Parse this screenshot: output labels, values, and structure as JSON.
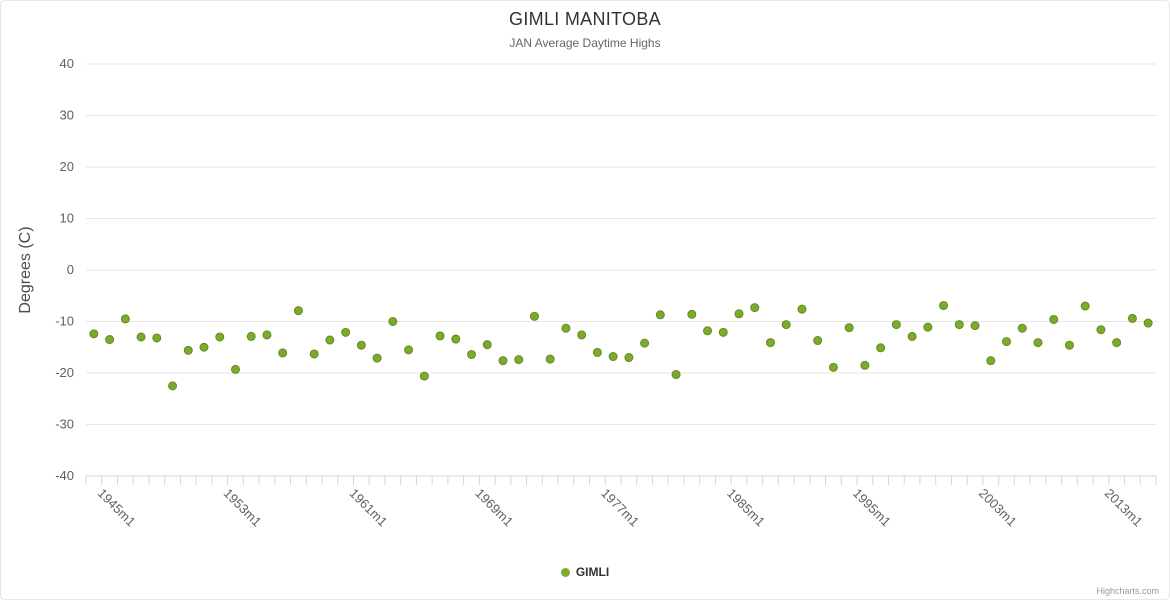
{
  "chart": {
    "title": "GIMLI MANITOBA",
    "subtitle": "JAN Average Daytime Highs",
    "y_axis_title": "Degrees (C)",
    "legend_label": "GIMLI",
    "credits": "Highcharts.com"
  },
  "colors": {
    "point": "#7cab2b",
    "point_border": "#628c20",
    "grid": "#e6e6e6",
    "axis_line": "#ccd6eb",
    "tick": "#ccd6eb",
    "label": "#606060",
    "title": "#333333",
    "subtitle": "#666666",
    "credits": "#999999"
  },
  "chart_data": {
    "type": "scatter",
    "title": "GIMLI MANITOBA",
    "subtitle": "JAN Average Daytime Highs",
    "ylabel": "Degrees (C)",
    "xlabel": "",
    "ylim": [
      -40,
      40
    ],
    "y_ticks": [
      40,
      30,
      20,
      10,
      0,
      -10,
      -20,
      -30,
      -40
    ],
    "grid": "horizontal",
    "legend_position": "bottom-center",
    "series_name": "GIMLI",
    "x_tick_labels": [
      "1945m1",
      "1953m1",
      "1961m1",
      "1969m1",
      "1977m1",
      "1985m1",
      "1995m1",
      "2003m1",
      "2013m1"
    ],
    "x_tick_step": 8,
    "values": [
      -12.4,
      -13.5,
      -9.5,
      -13.0,
      -13.2,
      -22.5,
      -15.6,
      -15.0,
      -13.0,
      -19.3,
      -12.9,
      -12.6,
      -16.1,
      -7.9,
      -16.3,
      -13.6,
      -12.1,
      -14.6,
      -17.1,
      -10.0,
      -15.5,
      -20.6,
      -12.8,
      -13.4,
      -16.4,
      -14.5,
      -17.6,
      -17.4,
      -9.0,
      -17.3,
      -11.3,
      -12.6,
      -16.0,
      -16.8,
      -17.0,
      -14.2,
      -8.7,
      -20.3,
      -8.6,
      -11.8,
      -12.1,
      -8.5,
      -7.3,
      -14.1,
      -10.6,
      -7.6,
      -13.7,
      -18.9,
      -11.2,
      -18.5,
      -15.1,
      -10.6,
      -12.9,
      -11.1,
      -6.9,
      -10.6,
      -10.8,
      -17.6,
      -13.9,
      -11.3,
      -14.1,
      -9.6,
      -14.6,
      -7.0,
      -11.6,
      -14.1,
      -9.4,
      -10.3
    ]
  }
}
